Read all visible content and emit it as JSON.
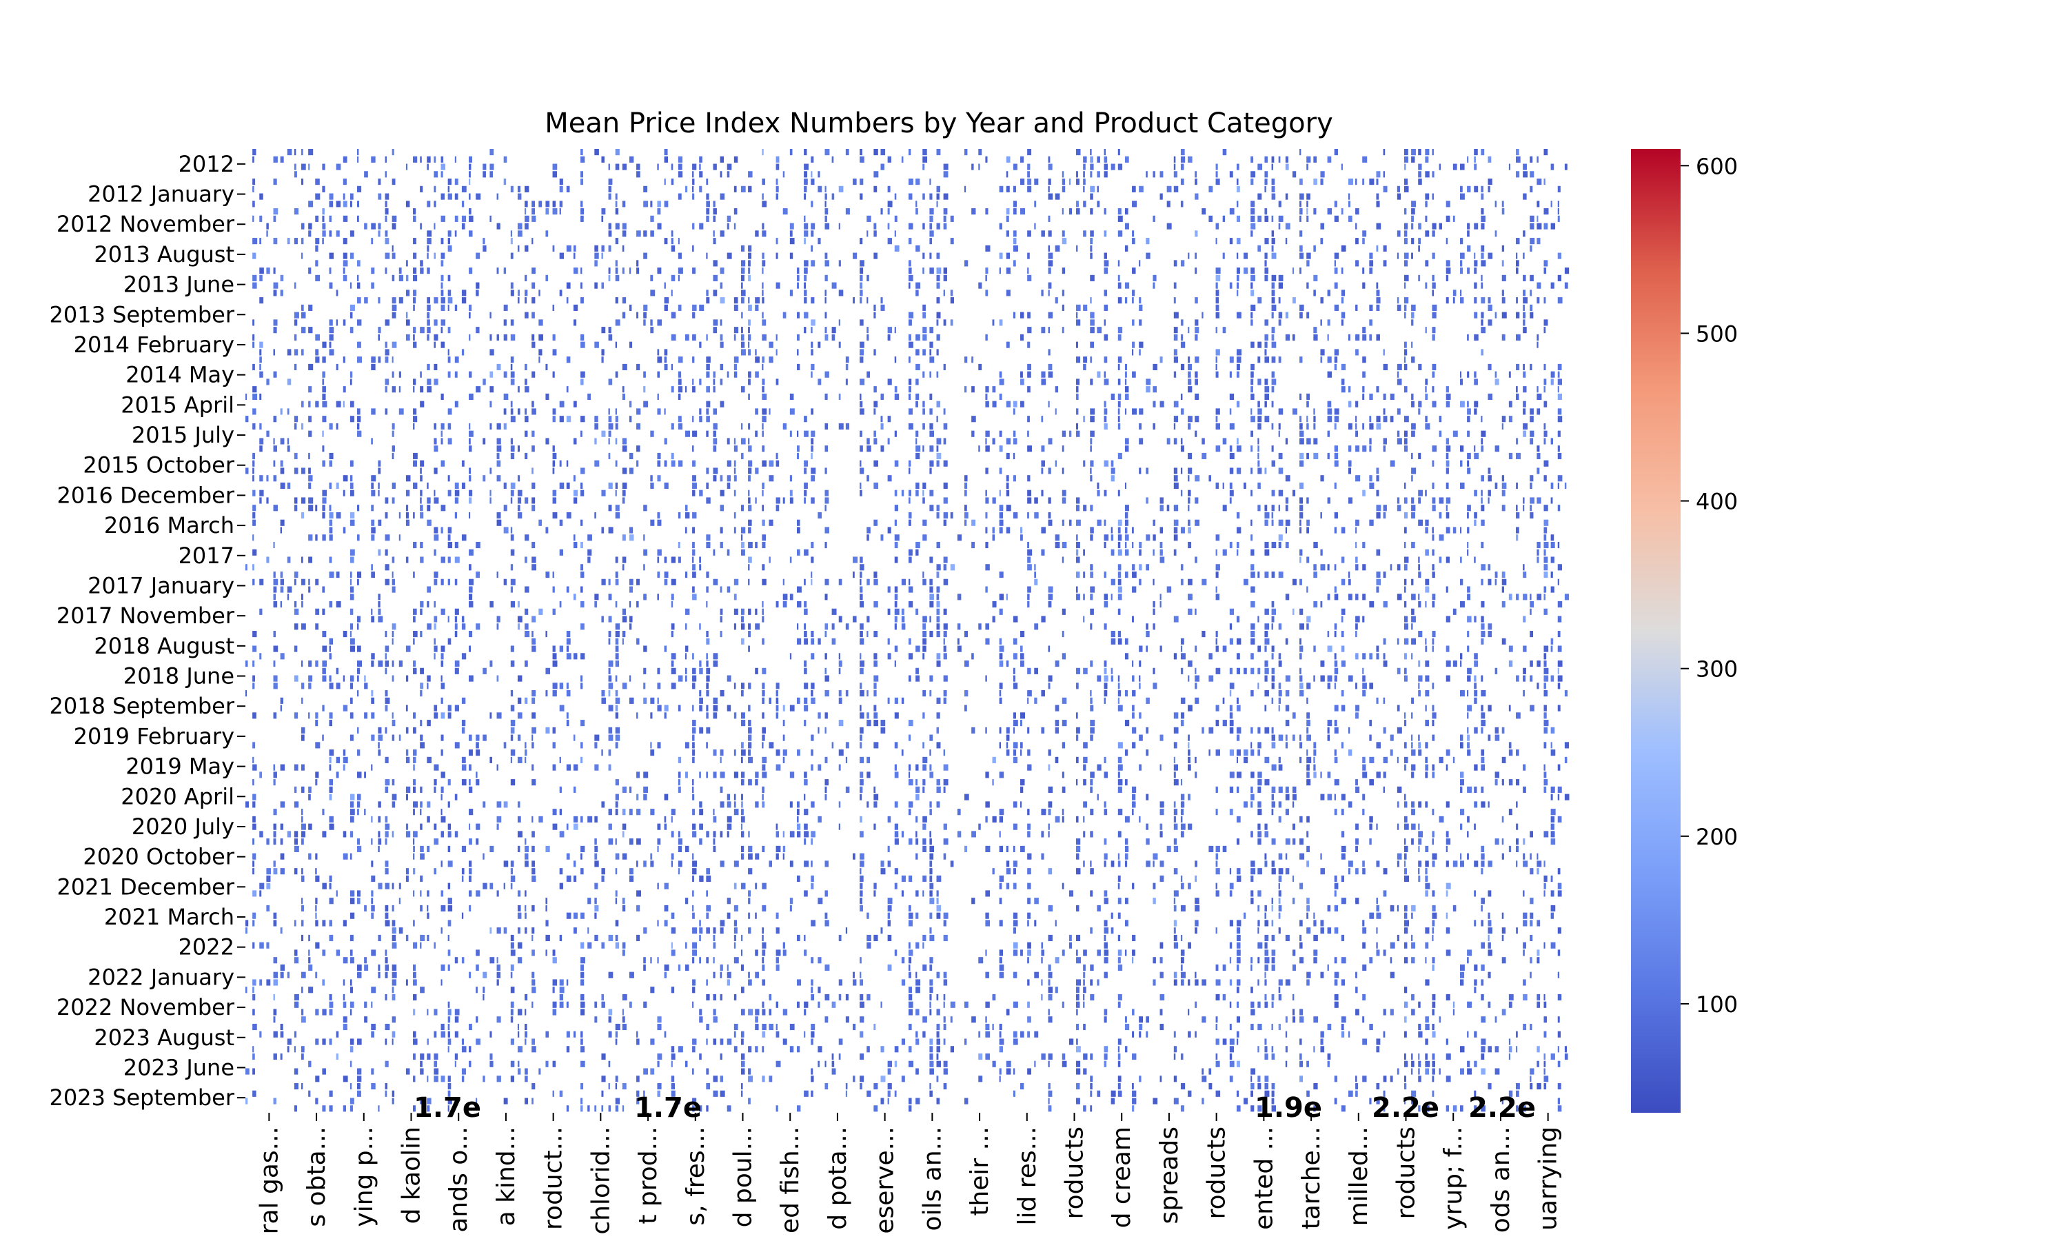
{
  "chart_data": {
    "type": "heatmap",
    "title": "Mean Price Index Numbers by Year and Product Category",
    "xlabel": "",
    "ylabel": "",
    "y_tick_labels": [
      "2012",
      "2012 January",
      "2012 November",
      "2013 August",
      "2013 June",
      "2013 September",
      "2014 February",
      "2014 May",
      "2015 April",
      "2015 July",
      "2015 October",
      "2016 December",
      "2016 March",
      "2017",
      "2017 January",
      "2017 November",
      "2018 August",
      "2018 June",
      "2018 September",
      "2019 February",
      "2019 May",
      "2020 April",
      "2020 July",
      "2020 October",
      "2021 December",
      "2021 March",
      "2022",
      "2022 January",
      "2022 November",
      "2023 August",
      "2023 June",
      "2023 September"
    ],
    "x_tick_labels": [
      "ral gas...",
      "s obta...",
      "ying p...",
      "d kaolin",
      "ands o...",
      "a kind...",
      "roduct...",
      "chlorid...",
      "t prod...",
      "s, fres...",
      "d poul...",
      "ed fish...",
      "d pota...",
      "eserve...",
      "oils an...",
      "their ...",
      "lid res...",
      "roducts",
      "d cream",
      "spreads",
      "roducts",
      "ented ...",
      "tarche...",
      "milled...",
      "roducts",
      "yrup; f...",
      "ods an...",
      "uarrying"
    ],
    "colorbar": {
      "min": 35,
      "max": 610,
      "ticks": [
        100,
        200,
        300,
        400,
        500,
        600
      ],
      "colormap": "coolwarm"
    },
    "annotations": [
      "1.7e",
      "1.7e",
      "1.9e",
      "2.2e",
      "2.2e"
    ],
    "grid": false,
    "legend": "colorbar-right"
  }
}
